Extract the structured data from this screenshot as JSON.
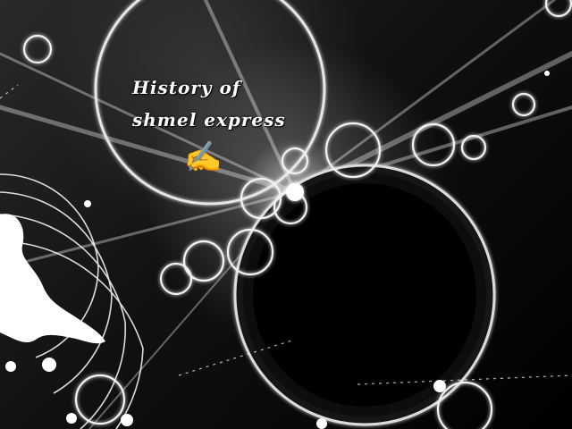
{
  "title": {
    "line1": "History of",
    "line2": "shmel express"
  },
  "emoji": {
    "glyph": "✍️",
    "icon": "writing-hand-icon"
  },
  "colors": {
    "background": "#000000",
    "glow": "#ffffff",
    "text": "#ffffff"
  }
}
